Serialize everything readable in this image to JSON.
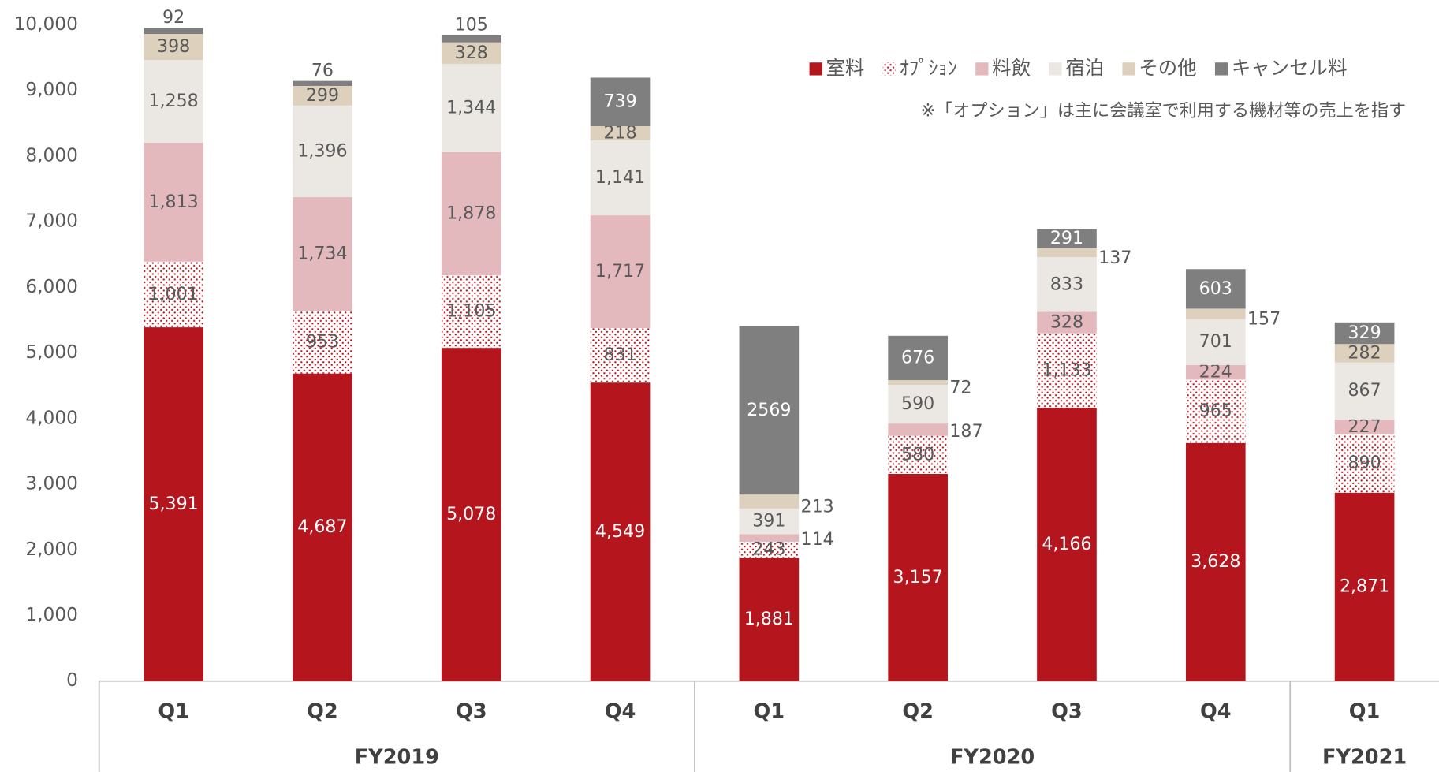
{
  "chart_data": {
    "type": "stacked_bar",
    "groups": [
      {
        "name": "FY2019",
        "categories": [
          "Q1",
          "Q2",
          "Q3",
          "Q4"
        ]
      },
      {
        "name": "FY2020",
        "categories": [
          "Q1",
          "Q2",
          "Q3",
          "Q4"
        ]
      },
      {
        "name": "FY2021",
        "categories": [
          "Q1"
        ]
      }
    ],
    "series": [
      {
        "name": "室料",
        "color": "#b5161e",
        "values": [
          5391,
          4687,
          5078,
          4549,
          1881,
          3157,
          4166,
          3628,
          2871
        ],
        "value_labels": [
          "5,391",
          "4,687",
          "5,078",
          "4,549",
          "1,881",
          "3,157",
          "4,166",
          "3,628",
          "2,871"
        ]
      },
      {
        "name": "ｵﾌﾟｼｮﾝ",
        "color": "#b5161e",
        "pattern": "dots",
        "values": [
          1001,
          953,
          1105,
          831,
          243,
          580,
          1133,
          965,
          890
        ],
        "value_labels": [
          "1,001",
          "953",
          "1,105",
          "831",
          "243",
          "580",
          "1,133",
          "965",
          "890"
        ]
      },
      {
        "name": "料飲",
        "color": "#e4b9be",
        "values": [
          1813,
          1734,
          1878,
          1717,
          114,
          187,
          328,
          224,
          227
        ],
        "value_labels": [
          "1,813",
          "1,734",
          "1,878",
          "1,717",
          "114",
          "187",
          "328",
          "224",
          "227"
        ]
      },
      {
        "name": "宿泊",
        "color": "#ebe8e3",
        "values": [
          1258,
          1396,
          1344,
          1141,
          391,
          590,
          833,
          701,
          867
        ],
        "value_labels": [
          "1,258",
          "1,396",
          "1,344",
          "1,141",
          "391",
          "590",
          "833",
          "701",
          "867"
        ]
      },
      {
        "name": "その他",
        "color": "#ddd0bd",
        "values": [
          398,
          299,
          328,
          218,
          213,
          72,
          137,
          157,
          282
        ]
      },
      {
        "name": "キャンセル料",
        "color": "#7f7f7f",
        "values": [
          92,
          76,
          105,
          739,
          2569,
          676,
          291,
          603,
          329
        ]
      }
    ],
    "note": "※「オプション」は主に会議室で利用する機材等の売上を指す",
    "ylim": [
      0,
      10000
    ],
    "yticks": [
      0,
      {
        "value": 1000,
        "label": "1,000"
      },
      {
        "value": 2000,
        "label": "2,000"
      },
      {
        "value": 3000,
        "label": "3,000"
      },
      {
        "value": 4000,
        "label": "4,000"
      },
      {
        "value": 5000,
        "label": "5,000"
      },
      {
        "value": 6000,
        "label": "6,000"
      },
      {
        "value": 7000,
        "label": "7,000"
      },
      {
        "value": 8000,
        "label": "8,000"
      },
      {
        "value": 9000,
        "label": "9,000"
      },
      {
        "value": 10000,
        "label": "10,000"
      }
    ],
    "grid": false,
    "legend": "top-right"
  }
}
